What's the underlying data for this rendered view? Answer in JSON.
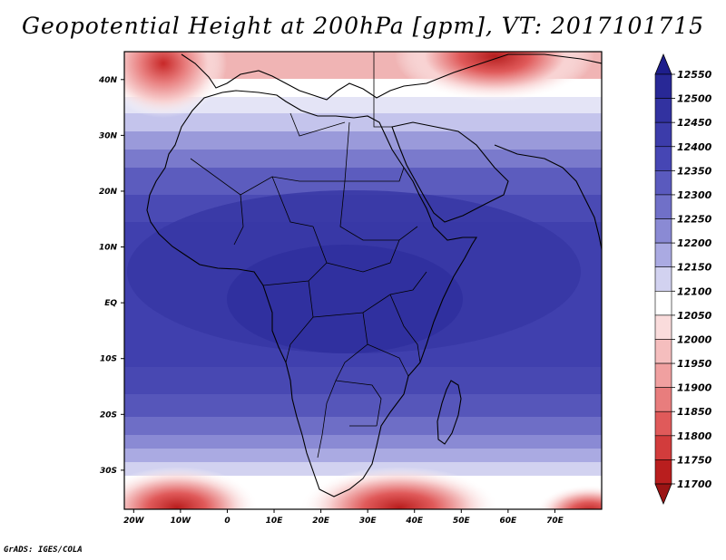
{
  "title": "Geopotential Height at 200hPa [gpm], VT: 2017101715",
  "footer": "GrADS: IGES/COLA",
  "map": {
    "lon_range": [
      -22,
      80
    ],
    "lat_range": [
      -37,
      45
    ],
    "lon_ticks": [
      {
        "value": -20,
        "label": "20W"
      },
      {
        "value": -10,
        "label": "10W"
      },
      {
        "value": 0,
        "label": "0"
      },
      {
        "value": 10,
        "label": "10E"
      },
      {
        "value": 20,
        "label": "20E"
      },
      {
        "value": 30,
        "label": "30E"
      },
      {
        "value": 40,
        "label": "40E"
      },
      {
        "value": 50,
        "label": "50E"
      },
      {
        "value": 60,
        "label": "60E"
      },
      {
        "value": 70,
        "label": "70E"
      }
    ],
    "lat_ticks": [
      {
        "value": 40,
        "label": "40N"
      },
      {
        "value": 30,
        "label": "30N"
      },
      {
        "value": 20,
        "label": "20N"
      },
      {
        "value": 10,
        "label": "10N"
      },
      {
        "value": 0,
        "label": "EQ"
      },
      {
        "value": -10,
        "label": "10S"
      },
      {
        "value": -20,
        "label": "20S"
      },
      {
        "value": -30,
        "label": "30S"
      }
    ]
  },
  "colorbar": {
    "labels": [
      "12550",
      "12500",
      "12450",
      "12400",
      "12350",
      "12300",
      "12250",
      "12200",
      "12150",
      "12100",
      "12050",
      "12000",
      "11950",
      "11900",
      "11850",
      "11800",
      "11750",
      "11700"
    ],
    "colors": [
      "#1e1e8c",
      "#282896",
      "#3232a0",
      "#3c3caa",
      "#4646b4",
      "#5a5abe",
      "#7070c8",
      "#8a8ad4",
      "#aaaae2",
      "#d2d2f0",
      "#ffffff",
      "#fadcdc",
      "#f5bebe",
      "#f0a0a0",
      "#e87d7d",
      "#e05a5a",
      "#d23c3c",
      "#b91e1e",
      "#9b1414"
    ]
  }
}
